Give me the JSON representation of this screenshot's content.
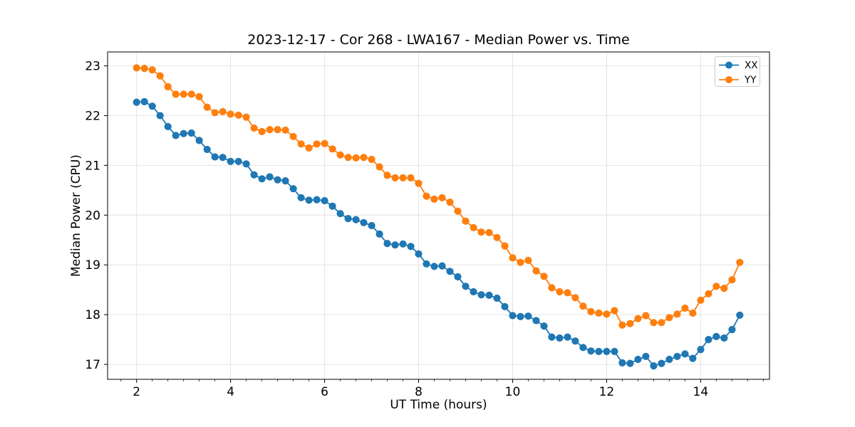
{
  "chart_data": {
    "type": "line",
    "title": "2023-12-17 - Cor 268 - LWA167 - Median Power vs. Time",
    "xlabel": "UT Time (hours)",
    "ylabel": "Median Power (CPU)",
    "x": [
      2,
      2.167,
      2.333,
      2.5,
      2.667,
      2.833,
      3,
      3.167,
      3.333,
      3.5,
      3.667,
      3.833,
      4,
      4.167,
      4.333,
      4.5,
      4.667,
      4.833,
      5,
      5.167,
      5.333,
      5.5,
      5.667,
      5.833,
      6,
      6.167,
      6.333,
      6.5,
      6.667,
      6.833,
      7,
      7.167,
      7.333,
      7.5,
      7.667,
      7.833,
      8,
      8.167,
      8.333,
      8.5,
      8.667,
      8.833,
      9,
      9.167,
      9.333,
      9.5,
      9.667,
      9.833,
      10,
      10.167,
      10.333,
      10.5,
      10.667,
      10.833,
      11,
      11.167,
      11.333,
      11.5,
      11.667,
      11.833,
      12,
      12.167,
      12.333,
      12.5,
      12.667,
      12.833,
      13,
      13.167,
      13.333,
      13.5,
      13.667,
      13.833,
      14,
      14.167,
      14.333,
      14.5,
      14.667,
      14.833
    ],
    "series": [
      {
        "name": "XX",
        "color": "#1f77b4",
        "values": [
          22.27,
          22.28,
          22.19,
          22.0,
          21.78,
          21.6,
          21.64,
          21.65,
          21.5,
          21.32,
          21.17,
          21.16,
          21.08,
          21.08,
          21.03,
          20.81,
          20.73,
          20.77,
          20.71,
          20.69,
          20.53,
          20.35,
          20.3,
          20.31,
          20.29,
          20.18,
          20.03,
          19.93,
          19.91,
          19.85,
          19.79,
          19.62,
          19.43,
          19.4,
          19.42,
          19.37,
          19.22,
          19.02,
          18.97,
          18.98,
          18.87,
          18.76,
          18.57,
          18.46,
          18.4,
          18.39,
          18.33,
          18.16,
          17.98,
          17.96,
          17.97,
          17.88,
          17.77,
          17.55,
          17.53,
          17.55,
          17.47,
          17.34,
          17.27,
          17.26,
          17.26,
          17.26,
          17.03,
          17.02,
          17.1,
          17.16,
          16.97,
          17.02,
          17.1,
          17.16,
          17.21,
          17.12,
          17.3,
          17.5,
          17.56,
          17.53,
          17.7,
          17.99
        ]
      },
      {
        "name": "YY",
        "color": "#ff7f0e",
        "values": [
          22.96,
          22.95,
          22.92,
          22.8,
          22.58,
          22.43,
          22.43,
          22.43,
          22.38,
          22.17,
          22.06,
          22.08,
          22.03,
          22.01,
          21.97,
          21.75,
          21.68,
          21.72,
          21.72,
          21.71,
          21.58,
          21.43,
          21.35,
          21.43,
          21.44,
          21.33,
          21.21,
          21.16,
          21.15,
          21.16,
          21.12,
          20.97,
          20.8,
          20.75,
          20.75,
          20.75,
          20.64,
          20.38,
          20.32,
          20.35,
          20.26,
          20.08,
          19.88,
          19.75,
          19.66,
          19.65,
          19.55,
          19.38,
          19.14,
          19.05,
          19.09,
          18.88,
          18.77,
          18.54,
          18.46,
          18.44,
          18.34,
          18.17,
          18.06,
          18.03,
          18.01,
          18.08,
          17.79,
          17.82,
          17.92,
          17.98,
          17.84,
          17.84,
          17.94,
          18.01,
          18.13,
          18.03,
          18.29,
          18.42,
          18.57,
          18.53,
          18.7,
          19.05
        ]
      }
    ],
    "xlim": [
      1.383,
      15.465
    ],
    "ylim": [
      16.7,
      23.28
    ],
    "xticks": [
      2,
      4,
      6,
      8,
      10,
      12,
      14
    ],
    "yticks": [
      17,
      18,
      19,
      20,
      21,
      22,
      23
    ],
    "x_minor_tick_step": 0.3333,
    "grid": true,
    "grid_color": "#e4e4e4",
    "legend_position": "upper right",
    "marker": "circle",
    "background": "#ffffff"
  }
}
